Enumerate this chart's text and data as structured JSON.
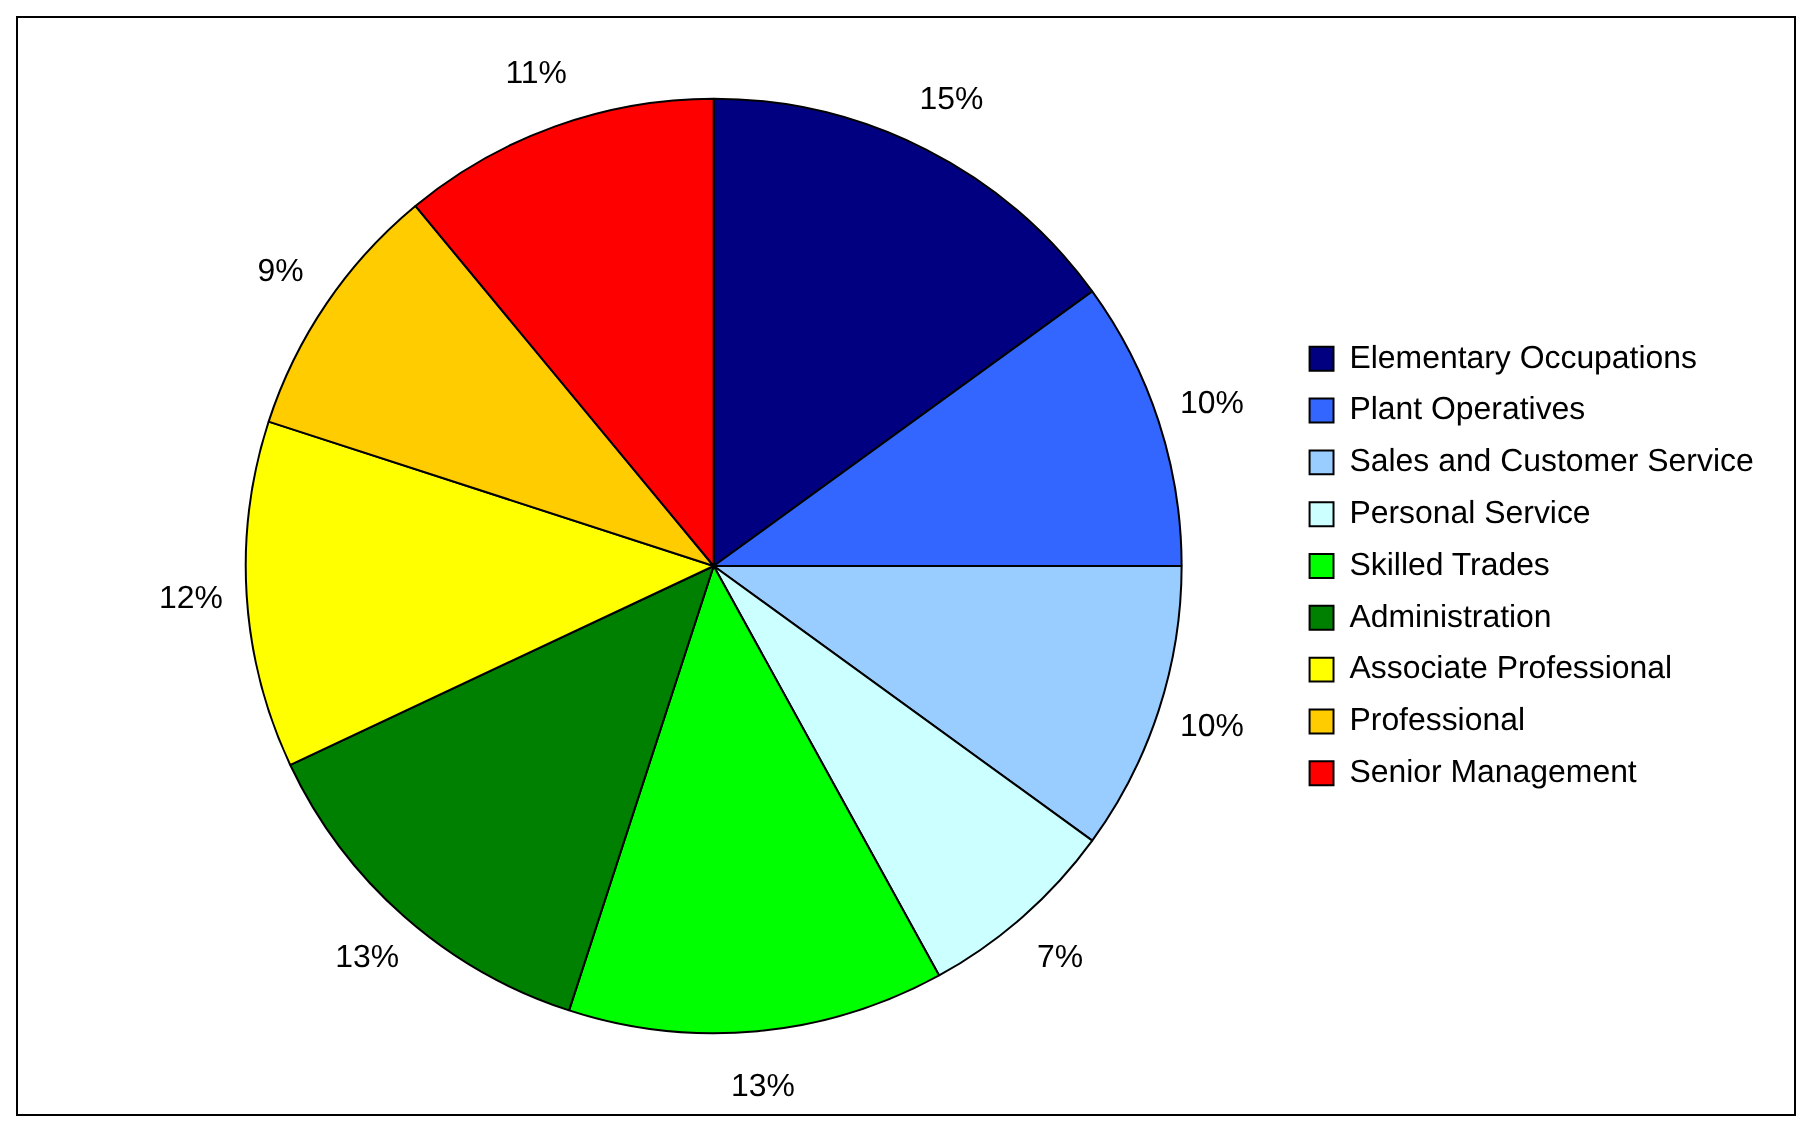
{
  "chart_data": {
    "type": "pie",
    "categories": [
      "Elementary Occupations",
      "Plant Operatives",
      "Sales and Customer Service",
      "Personal Service",
      "Skilled Trades",
      "Administration",
      "Associate Professional",
      "Professional",
      "Senior Management"
    ],
    "values": [
      15,
      10,
      10,
      7,
      13,
      13,
      12,
      9,
      11
    ],
    "colors": [
      "#000080",
      "#3366ff",
      "#99ccff",
      "#ccffff",
      "#00ff00",
      "#008000",
      "#ffff00",
      "#ffcc00",
      "#ff0000"
    ],
    "value_labels": [
      "15%",
      "10%",
      "10%",
      "7%",
      "13%",
      "13%",
      "12%",
      "9%",
      "11%"
    ],
    "legend": "right"
  }
}
